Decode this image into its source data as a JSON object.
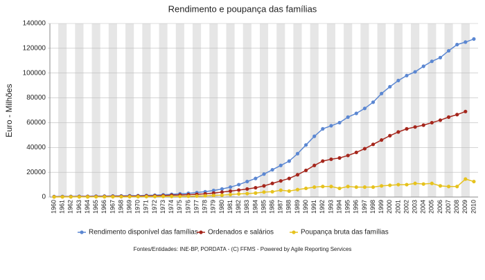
{
  "chart_data": {
    "type": "line",
    "title": "Rendimento e poupança das famílias",
    "y_label": "Euro - Milhões",
    "source": "Fontes/Entidades: INE-BP, PORDATA - (C) FFMS - Powered by Agile Reporting Services",
    "categories": [
      "1960",
      "1961",
      "1962",
      "1963",
      "1964",
      "1965",
      "1966",
      "1967",
      "1968",
      "1969",
      "1970",
      "1971",
      "1972",
      "1973",
      "1974",
      "1975",
      "1976",
      "1977",
      "1978",
      "1979",
      "1980",
      "1981",
      "1982",
      "1983",
      "1984",
      "1985",
      "1986",
      "1987",
      "1988",
      "1989",
      "1990",
      "1991",
      "1992",
      "1993",
      "1994",
      "1995",
      "1996",
      "1997",
      "1998",
      "1999",
      "2000",
      "2001",
      "2002",
      "2003",
      "2004",
      "2005",
      "2006",
      "2007",
      "2008",
      "2009",
      "2010"
    ],
    "series": [
      {
        "name": "Rendimento disponível das famílias",
        "color": "#5b87d2",
        "values": [
          400,
          450,
          500,
          550,
          600,
          700,
          750,
          850,
          950,
          1050,
          1150,
          1300,
          1500,
          1800,
          2200,
          2600,
          3000,
          3600,
          4300,
          5300,
          6500,
          8000,
          10000,
          12500,
          15000,
          18500,
          22000,
          25500,
          29000,
          35000,
          42000,
          49000,
          55000,
          57500,
          60000,
          64500,
          67500,
          71500,
          76500,
          83500,
          89000,
          94000,
          98000,
          101000,
          105500,
          109500,
          112500,
          118000,
          123000,
          125000,
          127500
        ]
      },
      {
        "name": "Ordenados e salários",
        "color": "#a5261c",
        "values": [
          200,
          250,
          300,
          350,
          400,
          450,
          500,
          550,
          600,
          700,
          800,
          900,
          1000,
          1200,
          1500,
          1700,
          1900,
          2200,
          2600,
          3200,
          4000,
          4800,
          5600,
          6500,
          7500,
          9000,
          11000,
          13000,
          15000,
          18000,
          21500,
          25500,
          29000,
          30500,
          31500,
          33500,
          36000,
          39000,
          42500,
          46000,
          49500,
          52500,
          55000,
          56500,
          58000,
          60000,
          62000,
          64500,
          66500,
          69000,
          null
        ]
      },
      {
        "name": "Poupança bruta das famílias",
        "color": "#e6c21e",
        "values": [
          100,
          100,
          120,
          130,
          150,
          170,
          190,
          210,
          230,
          260,
          300,
          350,
          400,
          500,
          500,
          500,
          600,
          800,
          1000,
          1300,
          1500,
          2000,
          2500,
          2800,
          3200,
          4000,
          4300,
          5500,
          4800,
          6000,
          7000,
          8000,
          8500,
          8500,
          7000,
          8500,
          8000,
          8000,
          8000,
          9000,
          9500,
          10000,
          10000,
          11000,
          10500,
          11000,
          9000,
          8500,
          8500,
          14500,
          12500
        ]
      }
    ],
    "ylim": [
      0,
      140000
    ],
    "yticks": [
      0,
      20000,
      40000,
      60000,
      80000,
      100000,
      120000,
      140000
    ],
    "grid": true
  }
}
